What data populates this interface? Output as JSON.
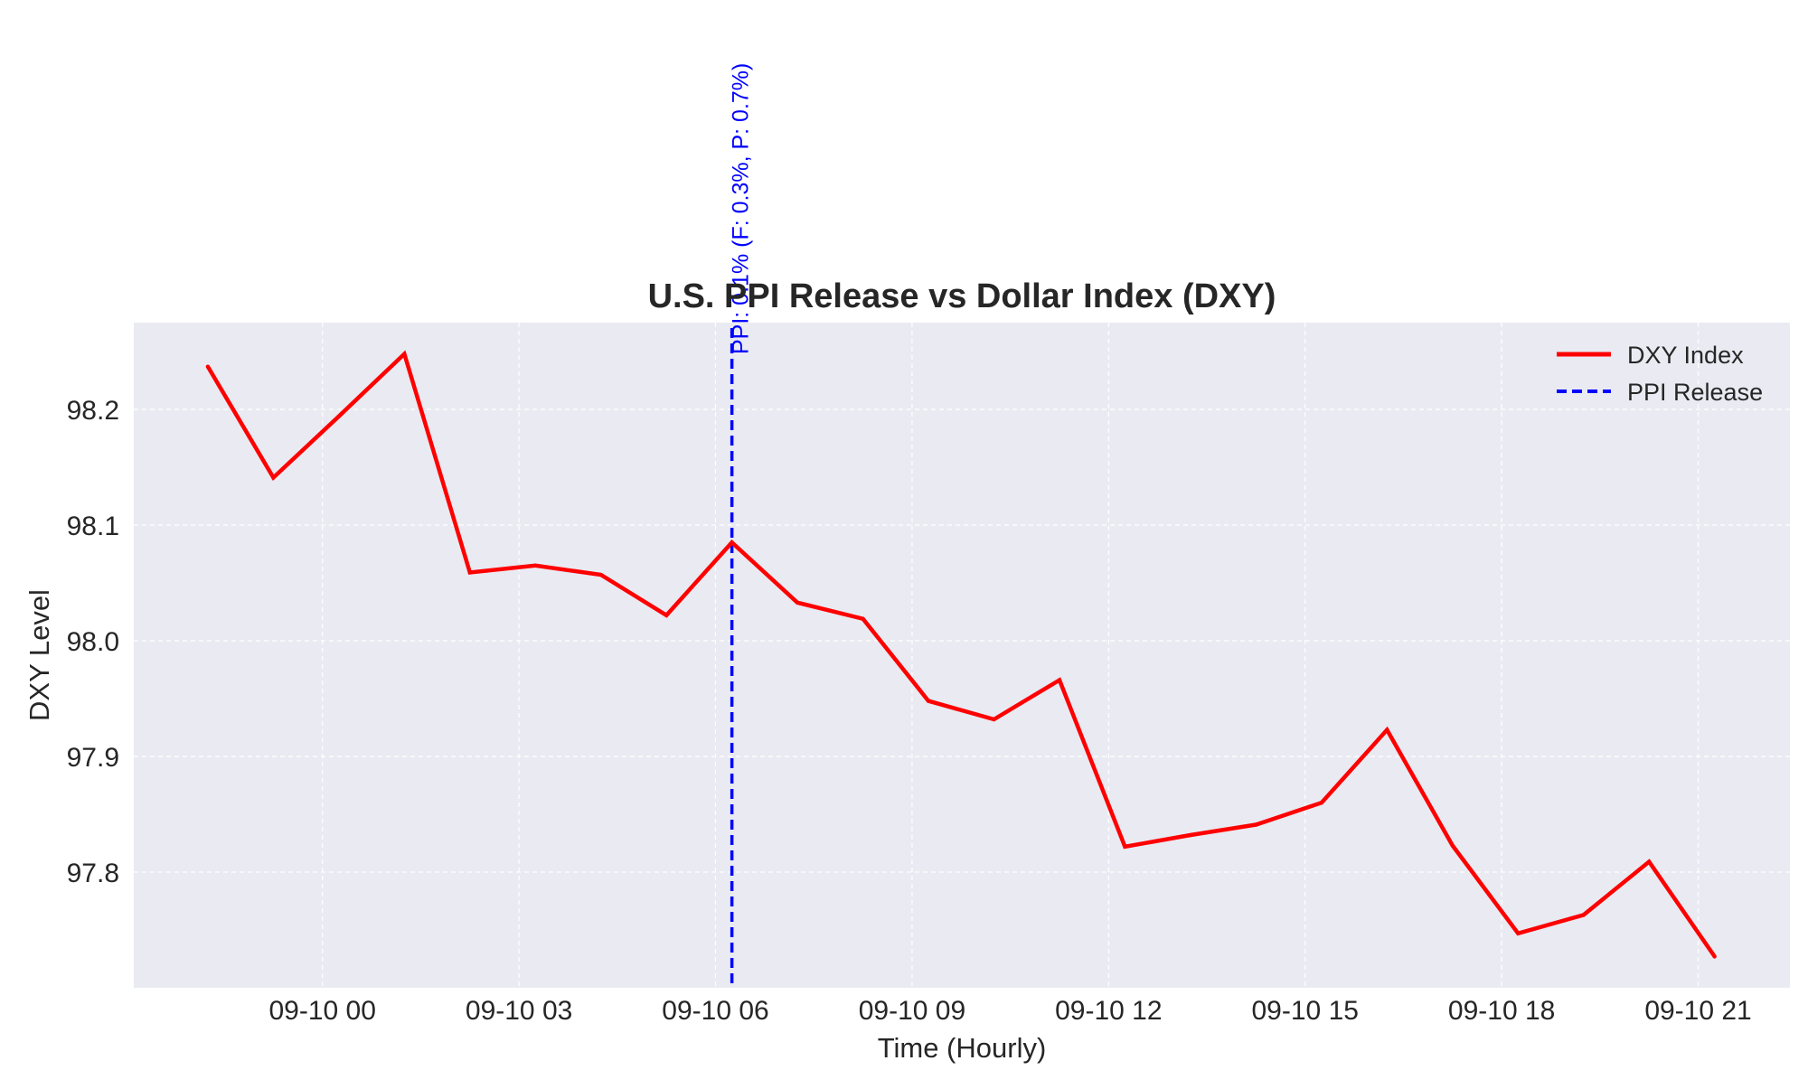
{
  "chart_data": {
    "type": "line",
    "title": "U.S. PPI Release vs Dollar Index (DXY)",
    "xlabel": "Time (Hourly)",
    "ylabel": "DXY Level",
    "x_tick_labels": [
      "09-10 00",
      "09-10 03",
      "09-10 06",
      "09-10 09",
      "09-10 12",
      "09-10 15",
      "09-10 18",
      "09-10 21"
    ],
    "x_tick_hours": [
      0,
      3,
      6,
      9,
      12,
      15,
      18,
      21
    ],
    "xlim_hours": [
      -2.88,
      22.4
    ],
    "y_ticks": [
      97.8,
      97.9,
      98.0,
      98.1,
      98.2
    ],
    "ylim": [
      97.7,
      98.275
    ],
    "grid": true,
    "legend_position": "top-right",
    "series": [
      {
        "name": "DXY Index",
        "color": "#ff0000",
        "x_hours": [
          -1.75,
          -0.75,
          0.25,
          1.25,
          2.25,
          3.25,
          4.25,
          5.25,
          6.25,
          7.25,
          8.25,
          9.25,
          10.25,
          11.25,
          12.25,
          13.25,
          14.25,
          15.25,
          16.25,
          17.25,
          18.25,
          19.25,
          20.25,
          21.25
        ],
        "values": [
          98.237,
          98.141,
          98.194,
          98.248,
          98.059,
          98.065,
          98.057,
          98.022,
          98.085,
          98.033,
          98.019,
          97.948,
          97.932,
          97.966,
          97.822,
          97.832,
          97.841,
          97.86,
          97.923,
          97.823,
          97.747,
          97.763,
          97.809,
          97.727
        ]
      }
    ],
    "vline": {
      "name": "PPI Release",
      "x_hour": 6.25,
      "color": "#0000ff",
      "label": "PPI: 0.1% (F: 0.3%, P: 0.7%)"
    }
  }
}
